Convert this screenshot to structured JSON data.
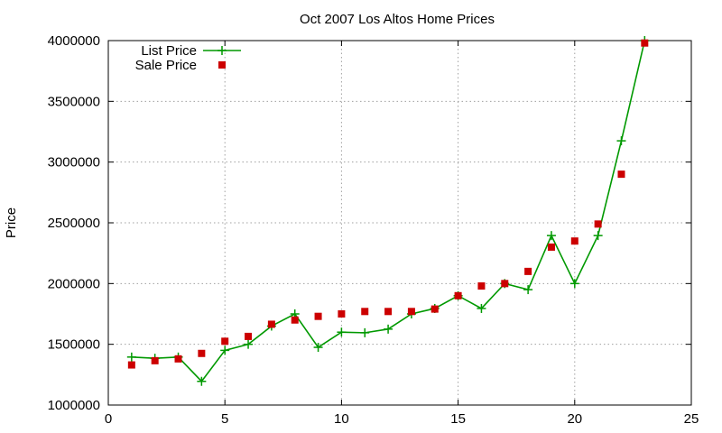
{
  "chart_data": {
    "type": "line",
    "title": "Oct 2007 Los Altos Home Prices",
    "xlabel": "",
    "ylabel": "Price",
    "xlim": [
      0,
      25
    ],
    "ylim": [
      1000000,
      4000000
    ],
    "x_ticks": [
      0,
      5,
      10,
      15,
      20,
      25
    ],
    "y_ticks": [
      1000000,
      1500000,
      2000000,
      2500000,
      3000000,
      3500000,
      4000000
    ],
    "x_tick_labels": [
      "0",
      "5",
      "10",
      "15",
      "20",
      "25"
    ],
    "y_tick_labels": [
      "1000000",
      "1500000",
      "2000000",
      "2500000",
      "3000000",
      "3500000",
      "4000000"
    ],
    "grid": true,
    "legend_position": "top-left",
    "series": [
      {
        "name": "List Price",
        "style": "line-plus",
        "color": "#009900",
        "x": [
          1,
          2,
          3,
          4,
          5,
          6,
          7,
          8,
          9,
          10,
          11,
          12,
          13,
          14,
          15,
          16,
          17,
          18,
          19,
          20,
          21,
          22,
          23
        ],
        "y": [
          1395000,
          1385000,
          1395000,
          1195000,
          1450000,
          1500000,
          1650000,
          1750000,
          1475000,
          1600000,
          1595000,
          1625000,
          1750000,
          1795000,
          1900000,
          1795000,
          2000000,
          1950000,
          2395000,
          2000000,
          2395000,
          3175000,
          4000000
        ]
      },
      {
        "name": "Sale Price",
        "style": "square-markers",
        "color": "#cc0000",
        "x": [
          1,
          2,
          3,
          4,
          5,
          6,
          7,
          8,
          9,
          10,
          11,
          12,
          13,
          14,
          15,
          16,
          17,
          18,
          19,
          20,
          21,
          22,
          23
        ],
        "y": [
          1330000,
          1365000,
          1380000,
          1425000,
          1525000,
          1565000,
          1665000,
          1700000,
          1730000,
          1750000,
          1770000,
          1770000,
          1770000,
          1790000,
          1900000,
          1980000,
          2000000,
          2100000,
          2300000,
          2350000,
          2490000,
          2900000,
          3980000
        ]
      }
    ]
  }
}
